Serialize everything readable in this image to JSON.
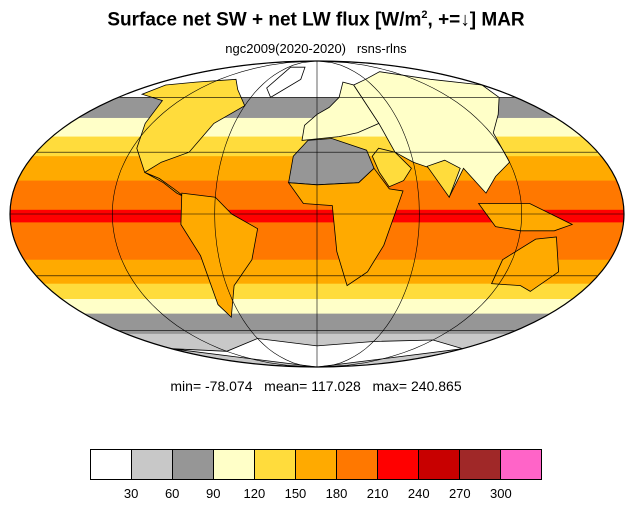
{
  "title": {
    "main": "Surface net SW + net LW flux [W/m",
    "sup": "2",
    "suffix": ", +=↓]  MAR"
  },
  "subtitle": "ngc2009(2020-2020)   rsns-rlns",
  "stats": "min= -78.074   mean= 117.028   max= 240.865",
  "colorbar": {
    "colors": [
      "#ffffff",
      "#c8c8c8",
      "#969696",
      "#ffffc8",
      "#ffdc3c",
      "#ffaa00",
      "#ff7800",
      "#ff0000",
      "#c80000",
      "#a02828",
      "#ff64c8"
    ],
    "labels": [
      "30",
      "60",
      "90",
      "120",
      "150",
      "180",
      "210",
      "240",
      "270",
      "300"
    ]
  },
  "map": {
    "projection": "Mollweide",
    "bands": [
      {
        "lat": [
          60,
          90
        ],
        "color": "#ffffff"
      },
      {
        "lat": [
          48,
          60
        ],
        "color": "#969696"
      },
      {
        "lat": [
          38,
          48
        ],
        "color": "#ffffc8"
      },
      {
        "lat": [
          28,
          38
        ],
        "color": "#ffdc3c"
      },
      {
        "lat": [
          16,
          28
        ],
        "color": "#ffaa00"
      },
      {
        "lat": [
          2,
          16
        ],
        "color": "#ff7800"
      },
      {
        "lat": [
          -4,
          2
        ],
        "color": "#ff0000"
      },
      {
        "lat": [
          -22,
          -4
        ],
        "color": "#ff7800"
      },
      {
        "lat": [
          -34,
          -22
        ],
        "color": "#ffaa00"
      },
      {
        "lat": [
          -42,
          -34
        ],
        "color": "#ffdc3c"
      },
      {
        "lat": [
          -50,
          -42
        ],
        "color": "#ffffc8"
      },
      {
        "lat": [
          -62,
          -50
        ],
        "color": "#969696"
      },
      {
        "lat": [
          -90,
          -62
        ],
        "color": "#c8c8c8"
      }
    ],
    "land": [
      {
        "name": "north-america",
        "color": "#ffdc3c",
        "points": [
          [
            -165,
            68
          ],
          [
            -140,
            70
          ],
          [
            -100,
            72
          ],
          [
            -80,
            65
          ],
          [
            -60,
            55
          ],
          [
            -75,
            45
          ],
          [
            -82,
            30
          ],
          [
            -97,
            25
          ],
          [
            -105,
            20
          ],
          [
            -117,
            32
          ],
          [
            -125,
            45
          ],
          [
            -135,
            58
          ],
          [
            -165,
            62
          ]
        ]
      },
      {
        "name": "central-america",
        "color": "#ffaa00",
        "points": [
          [
            -105,
            20
          ],
          [
            -95,
            17
          ],
          [
            -85,
            12
          ],
          [
            -78,
            8
          ],
          [
            -83,
            10
          ],
          [
            -92,
            15
          ]
        ]
      },
      {
        "name": "south-america",
        "color": "#ffaa00",
        "points": [
          [
            -80,
            10
          ],
          [
            -60,
            8
          ],
          [
            -50,
            0
          ],
          [
            -35,
            -7
          ],
          [
            -40,
            -22
          ],
          [
            -55,
            -35
          ],
          [
            -68,
            -52
          ],
          [
            -72,
            -45
          ],
          [
            -71,
            -20
          ],
          [
            -80,
            -5
          ]
        ]
      },
      {
        "name": "greenland",
        "color": "#ffffff",
        "points": [
          [
            -55,
            82
          ],
          [
            -25,
            82
          ],
          [
            -20,
            72
          ],
          [
            -42,
            60
          ],
          [
            -52,
            66
          ]
        ]
      },
      {
        "name": "europe",
        "color": "#ffffc8",
        "points": [
          [
            -10,
            36
          ],
          [
            -9,
            44
          ],
          [
            0,
            50
          ],
          [
            10,
            54
          ],
          [
            20,
            60
          ],
          [
            30,
            70
          ],
          [
            40,
            68
          ],
          [
            45,
            45
          ],
          [
            28,
            40
          ],
          [
            15,
            38
          ]
        ]
      },
      {
        "name": "africa-north",
        "color": "#969696",
        "points": [
          [
            -17,
            15
          ],
          [
            -15,
            28
          ],
          [
            -6,
            36
          ],
          [
            10,
            37
          ],
          [
            32,
            31
          ],
          [
            35,
            22
          ],
          [
            25,
            15
          ],
          [
            0,
            14
          ]
        ]
      },
      {
        "name": "africa-south",
        "color": "#ffaa00",
        "points": [
          [
            -17,
            15
          ],
          [
            0,
            14
          ],
          [
            25,
            15
          ],
          [
            35,
            22
          ],
          [
            43,
            12
          ],
          [
            51,
            11
          ],
          [
            40,
            -15
          ],
          [
            32,
            -28
          ],
          [
            20,
            -35
          ],
          [
            12,
            -18
          ],
          [
            9,
            4
          ],
          [
            -8,
            5
          ]
        ]
      },
      {
        "name": "arabia",
        "color": "#ffdc3c",
        "points": [
          [
            35,
            28
          ],
          [
            38,
            20
          ],
          [
            43,
            13
          ],
          [
            52,
            16
          ],
          [
            58,
            22
          ],
          [
            50,
            30
          ],
          [
            40,
            32
          ]
        ]
      },
      {
        "name": "asia",
        "color": "#ffffc8",
        "points": [
          [
            40,
            68
          ],
          [
            60,
            72
          ],
          [
            100,
            78
          ],
          [
            140,
            72
          ],
          [
            180,
            68
          ],
          [
            165,
            60
          ],
          [
            140,
            50
          ],
          [
            122,
            40
          ],
          [
            120,
            25
          ],
          [
            108,
            18
          ],
          [
            100,
            10
          ],
          [
            90,
            22
          ],
          [
            78,
            8
          ],
          [
            70,
            22
          ],
          [
            60,
            25
          ],
          [
            50,
            30
          ],
          [
            45,
            45
          ]
        ]
      },
      {
        "name": "india",
        "color": "#ffdc3c",
        "points": [
          [
            68,
            23
          ],
          [
            78,
            8
          ],
          [
            88,
            22
          ],
          [
            80,
            26
          ]
        ]
      },
      {
        "name": "southeast-asia",
        "color": "#ffaa00",
        "points": [
          [
            95,
            5
          ],
          [
            105,
            -6
          ],
          [
            120,
            -8
          ],
          [
            140,
            -8
          ],
          [
            150,
            -5
          ],
          [
            125,
            5
          ],
          [
            110,
            5
          ]
        ]
      },
      {
        "name": "australia",
        "color": "#ffaa00",
        "points": [
          [
            114,
            -22
          ],
          [
            130,
            -12
          ],
          [
            142,
            -11
          ],
          [
            153,
            -28
          ],
          [
            145,
            -38
          ],
          [
            135,
            -35
          ],
          [
            115,
            -34
          ]
        ]
      },
      {
        "name": "antarctica",
        "color": "#ffffff",
        "points": [
          [
            -180,
            -72
          ],
          [
            -120,
            -74
          ],
          [
            -60,
            -65
          ],
          [
            0,
            -70
          ],
          [
            60,
            -67
          ],
          [
            120,
            -66
          ],
          [
            180,
            -72
          ],
          [
            180,
            -90
          ],
          [
            -180,
            -90
          ]
        ]
      }
    ],
    "graticule": {
      "meridians": [
        -180,
        -120,
        -60,
        0,
        60,
        120,
        180
      ],
      "parallels": [
        -60,
        -30,
        0,
        30,
        60
      ]
    }
  }
}
